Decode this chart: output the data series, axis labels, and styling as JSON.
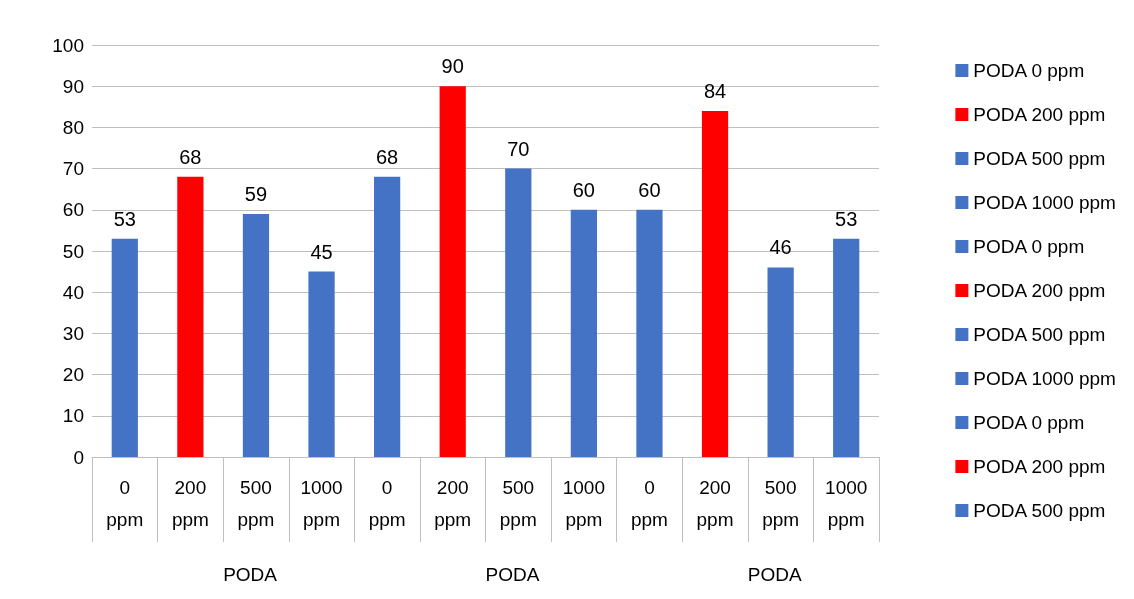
{
  "chart_data": {
    "type": "bar",
    "stacked": true,
    "categories": [
      "0 ppm",
      "200 ppm",
      "500 ppm",
      "1000 ppm",
      "0 ppm",
      "200 ppm",
      "500 ppm",
      "1000 ppm",
      "0 ppm",
      "200 ppm",
      "500 ppm",
      "1000 ppm"
    ],
    "annotations": [
      "PODA",
      "PODA",
      "PODA"
    ],
    "series": [
      {
        "name": "PODA 0 ppm",
        "color": "#4472c4",
        "values": [
          53,
          null,
          null,
          null,
          null,
          null,
          null,
          null,
          null,
          null,
          null,
          null
        ]
      },
      {
        "name": "PODA 200 ppm",
        "color": "#ff0000",
        "values": [
          null,
          68,
          null,
          null,
          null,
          null,
          null,
          null,
          null,
          null,
          null,
          null
        ]
      },
      {
        "name": "PODA 500 ppm",
        "color": "#4472c4",
        "values": [
          null,
          null,
          59,
          null,
          null,
          null,
          null,
          null,
          null,
          null,
          null,
          null
        ]
      },
      {
        "name": "PODA 1000 ppm",
        "color": "#4472c4",
        "values": [
          null,
          null,
          null,
          45,
          null,
          null,
          null,
          null,
          null,
          null,
          null,
          null
        ]
      },
      {
        "name": "PODA 0 ppm",
        "color": "#4472c4",
        "values": [
          null,
          null,
          null,
          null,
          68,
          null,
          null,
          null,
          null,
          null,
          null,
          null
        ]
      },
      {
        "name": "PODA 200 ppm",
        "color": "#ff0000",
        "values": [
          null,
          null,
          null,
          null,
          null,
          90,
          null,
          null,
          null,
          null,
          null,
          null
        ]
      },
      {
        "name": "PODA 500 ppm",
        "color": "#4472c4",
        "values": [
          null,
          null,
          null,
          null,
          null,
          null,
          70,
          null,
          null,
          null,
          null,
          null
        ]
      },
      {
        "name": "PODA 1000 ppm",
        "color": "#4472c4",
        "values": [
          null,
          null,
          null,
          null,
          null,
          null,
          null,
          60,
          null,
          null,
          null,
          null
        ]
      },
      {
        "name": "PODA 0 ppm",
        "color": "#4472c4",
        "values": [
          null,
          null,
          null,
          null,
          null,
          null,
          null,
          null,
          60,
          null,
          null,
          null
        ]
      },
      {
        "name": "PODA 200 ppm",
        "color": "#ff0000",
        "values": [
          null,
          null,
          null,
          null,
          null,
          null,
          null,
          null,
          null,
          84,
          null,
          null
        ]
      },
      {
        "name": "PODA 500 ppm",
        "color": "#4472c4",
        "values": [
          null,
          null,
          null,
          null,
          null,
          null,
          null,
          null,
          null,
          null,
          46,
          null
        ]
      },
      {
        "color": "#4472c4",
        "values": [
          null,
          null,
          null,
          null,
          null,
          null,
          null,
          null,
          null,
          null,
          null,
          53
        ]
      }
    ],
    "ylim": [
      0,
      100
    ],
    "yticks": [
      0,
      10,
      20,
      30,
      40,
      50,
      60,
      70,
      80,
      90,
      100
    ],
    "grid": "y",
    "data_labels": true,
    "legend": "right"
  }
}
